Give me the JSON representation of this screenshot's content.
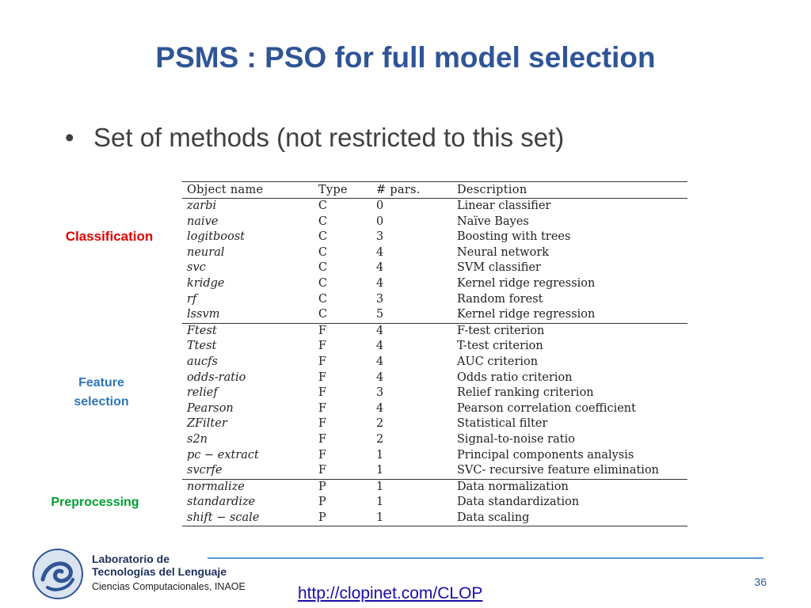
{
  "slide": {
    "title": "PSMS : PSO for full model selection",
    "bullet": "Set of methods (not restricted to this set)",
    "page_number": "36",
    "link": "http://clopinet.com/CLOP"
  },
  "labels": {
    "classification": "Classification",
    "feature_line1": "Feature",
    "feature_line2": "selection",
    "preprocessing": "Preprocessing"
  },
  "footer": {
    "lab_line1": "Laboratorio de",
    "lab_line2": "Tecnologías del Lenguaje",
    "lab_line3": "Ciencias Computacionales, INAOE"
  },
  "table": {
    "headers": [
      "Object name",
      "Type",
      "# pars.",
      "Description"
    ],
    "rows": [
      [
        "zarbi",
        "C",
        "0",
        "Linear classifier"
      ],
      [
        "naive",
        "C",
        "0",
        "Naïve Bayes"
      ],
      [
        "logitboost",
        "C",
        "3",
        "Boosting with trees"
      ],
      [
        "neural",
        "C",
        "4",
        "Neural network"
      ],
      [
        "svc",
        "C",
        "4",
        "SVM classifier"
      ],
      [
        "kridge",
        "C",
        "4",
        "Kernel ridge regression"
      ],
      [
        "rf",
        "C",
        "3",
        "Random forest"
      ],
      [
        "lssvm",
        "C",
        "5",
        "Kernel ridge regression"
      ],
      [
        "Ftest",
        "F",
        "4",
        "F-test criterion"
      ],
      [
        "Ttest",
        "F",
        "4",
        "T-test criterion"
      ],
      [
        "aucfs",
        "F",
        "4",
        "AUC criterion"
      ],
      [
        "odds-ratio",
        "F",
        "4",
        "Odds ratio criterion"
      ],
      [
        "relief",
        "F",
        "3",
        "Relief ranking criterion"
      ],
      [
        "Pearson",
        "F",
        "4",
        "Pearson correlation coefficient"
      ],
      [
        "ZFilter",
        "F",
        "2",
        "Statistical filter"
      ],
      [
        "s2n",
        "F",
        "2",
        "Signal-to-noise ratio"
      ],
      [
        "pc − extract",
        "F",
        "1",
        "Principal components analysis"
      ],
      [
        "svcrfe",
        "F",
        "1",
        "SVC- recursive feature elimination"
      ],
      [
        "normalize",
        "P",
        "1",
        "Data normalization"
      ],
      [
        "standardize",
        "P",
        "1",
        "Data standardization"
      ],
      [
        "shift − scale",
        "P",
        "1",
        "Data scaling"
      ]
    ]
  },
  "colors": {
    "title": "#2F5597",
    "classification": "#E00000",
    "feature": "#2E75B6",
    "preprocessing": "#00A030",
    "footer_line": "#5B9BD5"
  }
}
